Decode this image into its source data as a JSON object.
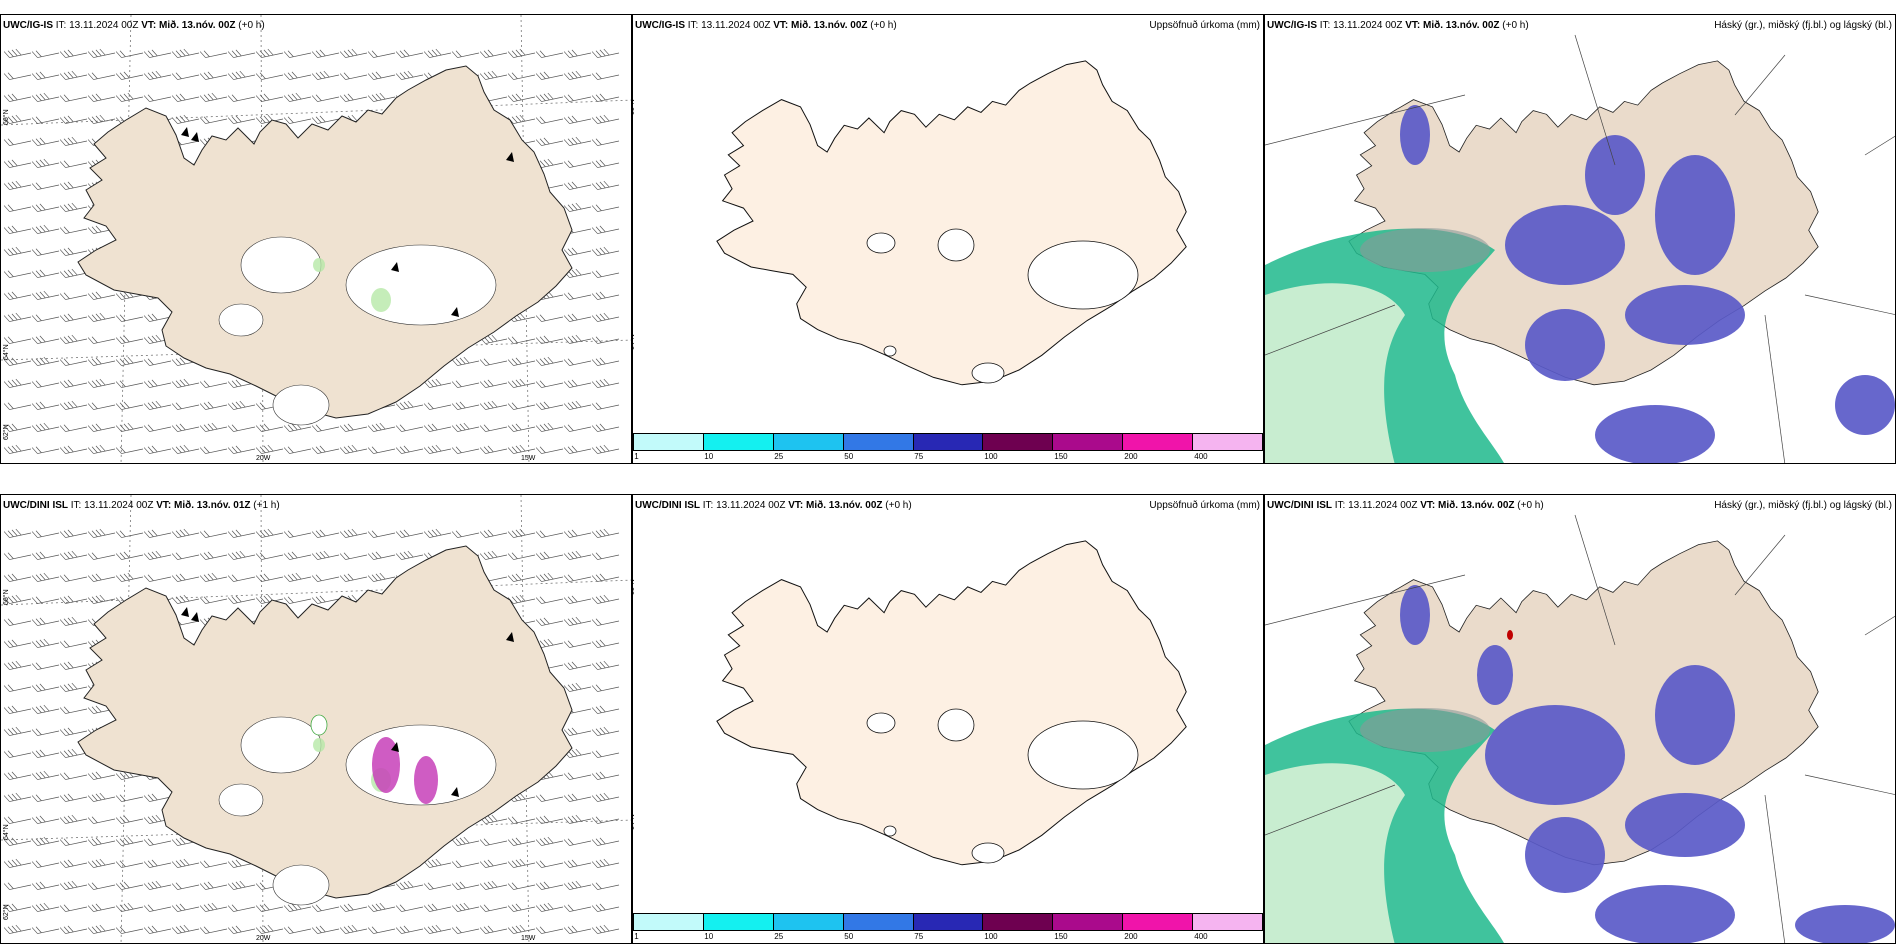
{
  "rows": [
    {
      "model": "UWC/IG-IS",
      "wind": {
        "it_label": "IT:",
        "it_value": "13.11.2024 00Z",
        "vt_label": "VT:",
        "vt_value": "Mið. 13.nóv. 00Z",
        "lead": "(+0 h)"
      },
      "precip": {
        "it_label": "IT:",
        "it_value": "13.11.2024 00Z",
        "vt_label": "VT:",
        "vt_value": "Mið. 13.nóv. 00Z",
        "lead": "(+0 h)"
      },
      "cloud": {
        "it_label": "IT:",
        "it_value": "13.11.2024 00Z",
        "vt_label": "VT:",
        "vt_value": "Mið. 13.nóv. 00Z",
        "lead": "(+0 h)"
      }
    },
    {
      "model": "UWC/DINI ISL",
      "wind": {
        "it_label": "IT:",
        "it_value": "13.11.2024 00Z",
        "vt_label": "VT:",
        "vt_value": "Mið. 13.nóv. 01Z",
        "lead": "(+1 h)"
      },
      "precip": {
        "it_label": "IT:",
        "it_value": "13.11.2024 00Z",
        "vt_label": "VT:",
        "vt_value": "Mið. 13.nóv. 00Z",
        "lead": "(+0 h)"
      },
      "cloud": {
        "it_label": "IT:",
        "it_value": "13.11.2024 00Z",
        "vt_label": "VT:",
        "vt_value": "Mið. 13.nóv. 00Z",
        "lead": "(+0 h)"
      }
    }
  ],
  "precip_title": "Uppsöfnuð úrkoma (mm)",
  "cloud_title": "Háský (gr.), miðský (fj.bl.) og lágský (bl.)",
  "axis_labels": {
    "lat_66": "66°N",
    "lat_64": "64°N",
    "lat_62": "62°N",
    "lon_20w": "20W",
    "lon_15w": "15W"
  },
  "colorbar": {
    "labels": [
      "1",
      "10",
      "25",
      "50",
      "75",
      "100",
      "150",
      "200",
      "400"
    ],
    "colors": [
      "#c2fafa",
      "#14f0f0",
      "#1ec3f0",
      "#3278e6",
      "#2828b4",
      "#6e0050",
      "#aa0a8c",
      "#f014aa",
      "#f5b4f0"
    ]
  },
  "colors": {
    "land_wind": "#efe2d1",
    "land_precip": "#fdf0e3",
    "land_cloud": "#eadbcb",
    "high_cloud": "#5a5ac8",
    "low_cloud": "#1fb88c",
    "mid_cloud": "#8a9a9a"
  }
}
